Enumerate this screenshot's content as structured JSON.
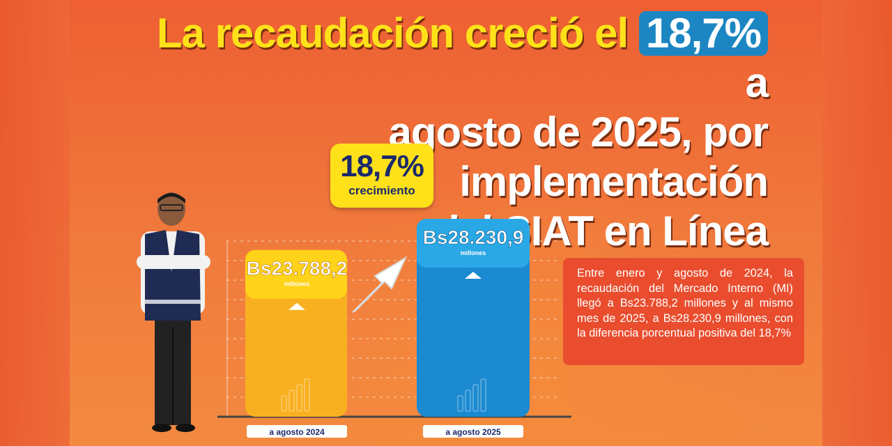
{
  "headline": {
    "part1": "La recaudación creció el",
    "highlight": "18,7%",
    "part2": " a",
    "line2": "agosto de 2025, por implementación",
    "line3": "del SIAT en Línea"
  },
  "badge": {
    "value": "18,7%",
    "label": "crecimiento"
  },
  "info_text": "Entre enero y agosto de 2024, la recaudación del Mercado Interno (MI) llegó a Bs23.788,2 millones y al mismo mes de 2025, a Bs28.230,9 millones, con la diferencia porcentual positiva del 18,7%",
  "colors": {
    "bar_2024": "#f9b020",
    "bar_2024_top": "#ffd319",
    "bar_2025": "#1c8ad0",
    "bar_2025_top": "#2aa8e6",
    "highlight_blue": "#1b86c2",
    "yellow": "#ffe11a",
    "navy": "#1b2a6b"
  },
  "chart_data": {
    "type": "bar",
    "categories": [
      "a agosto 2024",
      "a agosto 2025"
    ],
    "values": [
      23788.2,
      28230.9
    ],
    "value_labels": [
      "Bs23.788,2",
      "Bs28.230,9"
    ],
    "unit_label": "millones",
    "growth": "18,7%",
    "ylim": [
      0,
      28230.9
    ]
  }
}
